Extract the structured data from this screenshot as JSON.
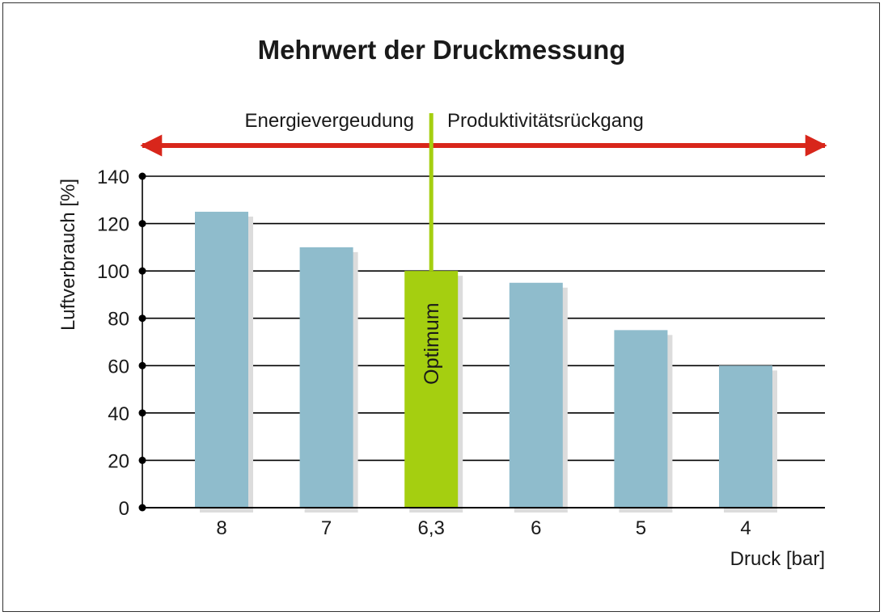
{
  "colors": {
    "bar": "#8fbccc",
    "highlight": "#a5cf10",
    "shadow": "#dcdcdc",
    "arrow": "#d8261b",
    "grid": "#000000"
  },
  "chart_data": {
    "type": "bar",
    "title": "Mehrwert der Druckmessung",
    "xlabel": "Druck [bar]",
    "ylabel": "Luftverbrauch [%]",
    "categories": [
      "8",
      "7",
      "6,3",
      "6",
      "5",
      "4"
    ],
    "values": [
      125,
      110,
      100,
      95,
      75,
      60
    ],
    "ylim": [
      0,
      140
    ],
    "yticks": [
      0,
      20,
      40,
      60,
      80,
      100,
      120,
      140
    ],
    "grid": true,
    "highlight_index": 2,
    "highlight_label": "Optimum",
    "regions": {
      "left": "Energievergeudung",
      "right": "Produktivitätsrückgang"
    }
  }
}
